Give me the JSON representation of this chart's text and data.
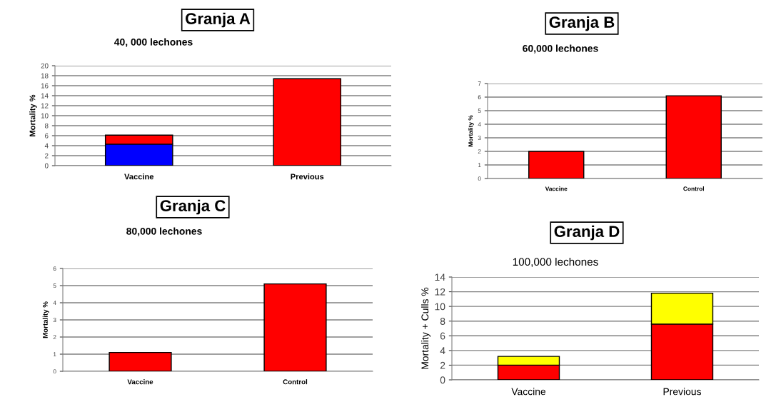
{
  "chart_data": [
    {
      "type": "bar",
      "title": "Granja A",
      "subtitle": "40, 000 lechones",
      "ylabel": "Mortality %",
      "categories": [
        "Vaccine",
        "Previous"
      ],
      "stacked": true,
      "series": [
        {
          "color": "#0000ff",
          "values": [
            4.3,
            null
          ]
        },
        {
          "color": "#ff0000",
          "values": [
            1.8,
            17.4
          ]
        }
      ],
      "ylim": [
        0,
        20
      ],
      "yticks": [
        0,
        2,
        4,
        6,
        8,
        10,
        12,
        14,
        16,
        18,
        20
      ],
      "grid": "y"
    },
    {
      "type": "bar",
      "title": "Granja B",
      "subtitle": "60,000 lechones",
      "ylabel": "Mortality %",
      "categories": [
        "Vaccine",
        "Control"
      ],
      "values": [
        2.0,
        6.1
      ],
      "color": "#ff0000",
      "ylim": [
        0,
        7
      ],
      "yticks": [
        0,
        1,
        2,
        3,
        4,
        5,
        6,
        7
      ],
      "grid": "y"
    },
    {
      "type": "bar",
      "title": "Granja C",
      "subtitle": "80,000 lechones",
      "ylabel": "Mortality %",
      "categories": [
        "Vaccine",
        "Control"
      ],
      "values": [
        1.1,
        5.1
      ],
      "color": "#ff0000",
      "ylim": [
        0,
        6
      ],
      "yticks": [
        0,
        1,
        2,
        3,
        4,
        5,
        6
      ],
      "grid": "y"
    },
    {
      "type": "bar",
      "title": "Granja D",
      "subtitle": "100,000 lechones",
      "ylabel": "Mortality + Culls %",
      "categories": [
        "Vaccine",
        "Previous"
      ],
      "stacked": true,
      "series": [
        {
          "color": "#ff0000",
          "values": [
            2.0,
            7.6
          ]
        },
        {
          "color": "#ffff00",
          "values": [
            1.2,
            4.2
          ]
        }
      ],
      "ylim": [
        0,
        14
      ],
      "yticks": [
        0,
        2,
        4,
        6,
        8,
        10,
        12,
        14
      ],
      "grid": "y"
    }
  ]
}
